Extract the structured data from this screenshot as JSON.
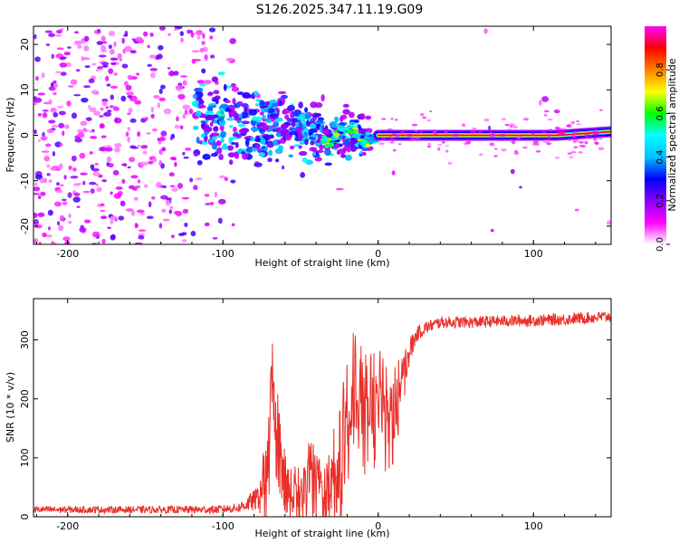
{
  "title": "S126.2025.347.11.19.G09",
  "chart_data": [
    {
      "type": "heatmap",
      "title": "S126.2025.347.11.19.G09",
      "xlabel": "Height of straight line (km)",
      "ylabel": "Frequency (Hz)",
      "xlim": [
        -222,
        150
      ],
      "ylim": [
        -24,
        24
      ],
      "x_ticks": [
        -200,
        -100,
        0,
        100
      ],
      "x_tick_labels": [
        "-200",
        "-100",
        "0",
        "100"
      ],
      "y_ticks": [
        20,
        10,
        0,
        -10,
        -20
      ],
      "y_tick_labels": [
        "20",
        "10",
        "0",
        "-10",
        "-20"
      ],
      "colorbar": {
        "label": "Normalized spectral amplitude",
        "range": [
          0,
          1
        ],
        "ticks": [
          0.0,
          0.2,
          0.4,
          0.6,
          0.8
        ],
        "tick_labels": [
          "0.0",
          "0.2",
          "0.4",
          "0.6",
          "0.8"
        ],
        "colors": [
          "#ffffff",
          "#ff00ff",
          "#8800ff",
          "#0000ff",
          "#00c0ff",
          "#00ffff",
          "#00ff00",
          "#ffff00",
          "#ff8000",
          "#ff0000",
          "#ff00ff"
        ]
      },
      "signal_band": {
        "description_x": [
          0,
          150
        ],
        "frequency_start": 0.0,
        "frequency_end": 0.8
      },
      "noise_region_x": [
        -222,
        -95
      ],
      "transition_region_x": [
        -120,
        0
      ]
    },
    {
      "type": "line",
      "xlabel": "Height of straight line (km)",
      "ylabel": "SNR (10 * v/v)",
      "xlim": [
        -222,
        150
      ],
      "ylim": [
        0,
        370
      ],
      "x_ticks": [
        -200,
        -100,
        0,
        100
      ],
      "x_tick_labels": [
        "-200",
        "-100",
        "0",
        "100"
      ],
      "y_ticks": [
        0,
        100,
        200,
        300
      ],
      "y_tick_labels": [
        "0",
        "100",
        "200",
        "300"
      ],
      "line_color": "#e8302a",
      "series": [
        {
          "name": "SNR",
          "x": [
            -222,
            -150,
            -105,
            -90,
            -78,
            -72,
            -68,
            -64,
            -60,
            -55,
            -50,
            -45,
            -40,
            -35,
            -30,
            -25,
            -20,
            -15,
            -10,
            -5,
            0,
            5,
            10,
            15,
            20,
            25,
            30,
            35,
            40,
            60,
            80,
            100,
            120,
            150
          ],
          "y": [
            12,
            12,
            12,
            15,
            30,
            90,
            230,
            140,
            70,
            50,
            45,
            90,
            80,
            60,
            70,
            120,
            180,
            260,
            200,
            220,
            230,
            210,
            190,
            240,
            280,
            310,
            320,
            325,
            330,
            330,
            332,
            333,
            335,
            340
          ],
          "noise_amp": [
            6,
            6,
            7,
            8,
            20,
            60,
            70,
            60,
            40,
            40,
            40,
            50,
            50,
            50,
            60,
            80,
            80,
            80,
            80,
            80,
            80,
            80,
            60,
            40,
            25,
            12,
            12,
            10,
            10,
            10,
            10,
            10,
            10,
            10
          ]
        }
      ]
    }
  ]
}
